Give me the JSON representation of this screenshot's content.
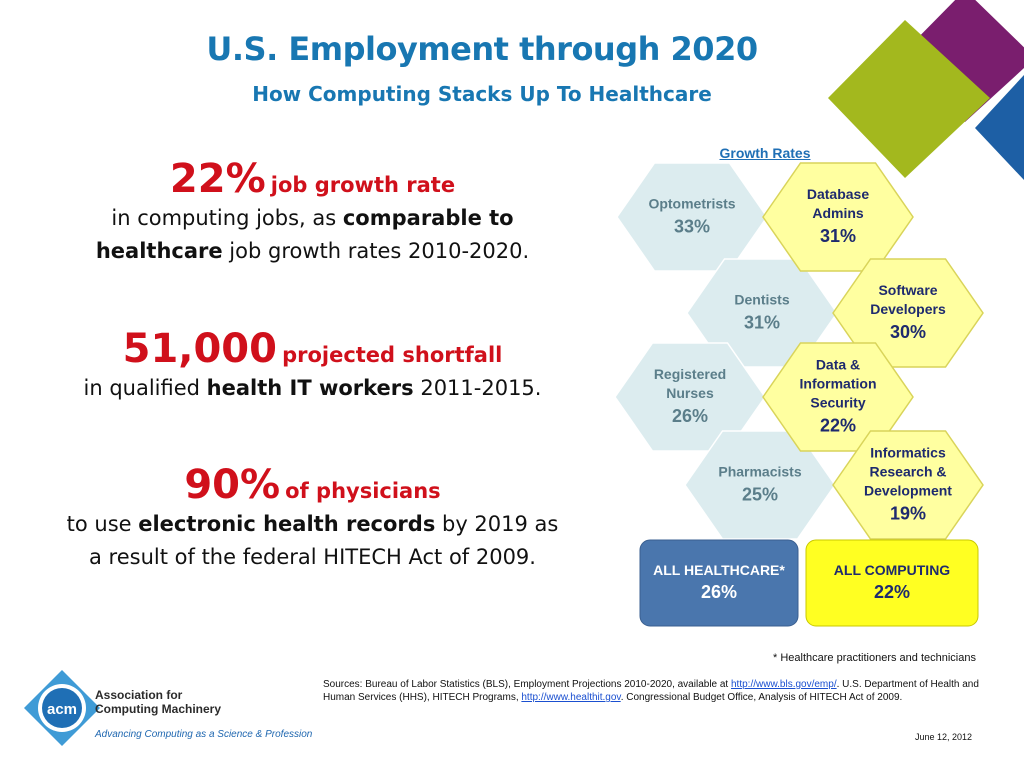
{
  "header": {
    "title": "U.S. Employment through 2020",
    "subtitle": "How Computing Stacks Up To Healthcare"
  },
  "stats": [
    {
      "big": "22%",
      "label": "job growth rate",
      "line1_a": "in computing jobs, as ",
      "line1_b": "comparable to",
      "line2_a": "healthcare",
      "line2_b": " job growth rates 2010-2020."
    },
    {
      "big": "51,000",
      "label": "projected shortfall",
      "line1_a": "in qualified ",
      "line1_b": "health IT workers",
      "line1_c": " 2011-2015."
    },
    {
      "big": "90%",
      "label": "of physicians",
      "line1_a": "to use ",
      "line1_b": "electronic health records",
      "line1_c": "  by 2019 as",
      "line2": "a result of the federal HITECH Act of 2009."
    }
  ],
  "growth": {
    "heading": "Growth Rates",
    "healthcare": [
      {
        "lines": [
          "Optometrists"
        ],
        "value": "33%"
      },
      {
        "lines": [
          "Dentists"
        ],
        "value": "31%"
      },
      {
        "lines": [
          "Registered",
          "Nurses"
        ],
        "value": "26%"
      },
      {
        "lines": [
          "Pharmacists"
        ],
        "value": "25%"
      }
    ],
    "computing": [
      {
        "lines": [
          "Database",
          "Admins"
        ],
        "value": "31%"
      },
      {
        "lines": [
          "Software",
          "Developers"
        ],
        "value": "30%"
      },
      {
        "lines": [
          "Data &",
          "Information",
          "Security"
        ],
        "value": "22%"
      },
      {
        "lines": [
          "Informatics",
          "Research &",
          "Development"
        ],
        "value": "19%"
      }
    ],
    "totals": [
      {
        "label": "ALL HEALTHCARE*",
        "value": "26%"
      },
      {
        "label": "ALL COMPUTING",
        "value": "22%"
      }
    ]
  },
  "footnote": "* Healthcare practitioners and technicians",
  "sources": {
    "part1": "Sources: Bureau of Labor Statistics (BLS), Employment Projections 2010-2020, available at ",
    "link1": "http://www.bls.gov/emp/",
    "part2": ". U.S. Department of Health and Human Services (HHS), HITECH Programs, ",
    "link2": "http://www.healthit.gov",
    "part3": ". Congressional Budget Office, Analysis of HITECH Act of 2009."
  },
  "date": "June 12, 2012",
  "logo": {
    "mark": "acm",
    "name_line1": "Association for",
    "name_line2": "Computing Machinery",
    "tagline": "Advancing Computing as a Science & Profession"
  },
  "colors": {
    "title": "#1877b2",
    "accent_red": "#d0101b",
    "hex_health_fill": "#dcecef",
    "hex_health_text": "#5b7e8a",
    "hex_comp_fill": "#ffffa0",
    "hex_comp_text": "#1e2a6e",
    "total_health": "#4a76ad",
    "total_comp": "#ffff22",
    "deco_purple": "#7a1e6e",
    "deco_green": "#a3b81e",
    "deco_blue": "#1d5fa5"
  }
}
